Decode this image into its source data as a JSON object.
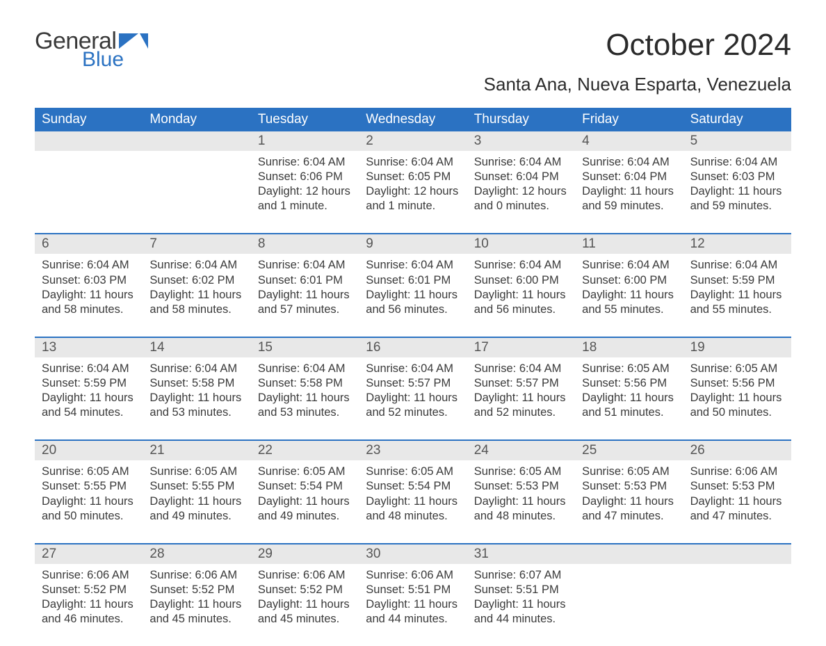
{
  "logo": {
    "general": "General",
    "blue": "Blue"
  },
  "title": "October 2024",
  "location": "Santa Ana, Nueva Esparta, Venezuela",
  "colors": {
    "header_bg": "#2b72c2",
    "header_text": "#ffffff",
    "daynum_bg": "#e8e8e8",
    "week_border": "#2b72c2",
    "body_text": "#3a3a3a",
    "page_bg": "#ffffff",
    "logo_blue": "#2b72c2"
  },
  "typography": {
    "body_fontsize": 16.5,
    "header_fontsize": 19,
    "title_fontsize": 44,
    "location_fontsize": 26
  },
  "day_names": [
    "Sunday",
    "Monday",
    "Tuesday",
    "Wednesday",
    "Thursday",
    "Friday",
    "Saturday"
  ],
  "weeks": [
    [
      {
        "day": "",
        "sunrise": "",
        "sunset": "",
        "daylight1": "",
        "daylight2": ""
      },
      {
        "day": "",
        "sunrise": "",
        "sunset": "",
        "daylight1": "",
        "daylight2": ""
      },
      {
        "day": "1",
        "sunrise": "Sunrise: 6:04 AM",
        "sunset": "Sunset: 6:06 PM",
        "daylight1": "Daylight: 12 hours",
        "daylight2": "and 1 minute."
      },
      {
        "day": "2",
        "sunrise": "Sunrise: 6:04 AM",
        "sunset": "Sunset: 6:05 PM",
        "daylight1": "Daylight: 12 hours",
        "daylight2": "and 1 minute."
      },
      {
        "day": "3",
        "sunrise": "Sunrise: 6:04 AM",
        "sunset": "Sunset: 6:04 PM",
        "daylight1": "Daylight: 12 hours",
        "daylight2": "and 0 minutes."
      },
      {
        "day": "4",
        "sunrise": "Sunrise: 6:04 AM",
        "sunset": "Sunset: 6:04 PM",
        "daylight1": "Daylight: 11 hours",
        "daylight2": "and 59 minutes."
      },
      {
        "day": "5",
        "sunrise": "Sunrise: 6:04 AM",
        "sunset": "Sunset: 6:03 PM",
        "daylight1": "Daylight: 11 hours",
        "daylight2": "and 59 minutes."
      }
    ],
    [
      {
        "day": "6",
        "sunrise": "Sunrise: 6:04 AM",
        "sunset": "Sunset: 6:03 PM",
        "daylight1": "Daylight: 11 hours",
        "daylight2": "and 58 minutes."
      },
      {
        "day": "7",
        "sunrise": "Sunrise: 6:04 AM",
        "sunset": "Sunset: 6:02 PM",
        "daylight1": "Daylight: 11 hours",
        "daylight2": "and 58 minutes."
      },
      {
        "day": "8",
        "sunrise": "Sunrise: 6:04 AM",
        "sunset": "Sunset: 6:01 PM",
        "daylight1": "Daylight: 11 hours",
        "daylight2": "and 57 minutes."
      },
      {
        "day": "9",
        "sunrise": "Sunrise: 6:04 AM",
        "sunset": "Sunset: 6:01 PM",
        "daylight1": "Daylight: 11 hours",
        "daylight2": "and 56 minutes."
      },
      {
        "day": "10",
        "sunrise": "Sunrise: 6:04 AM",
        "sunset": "Sunset: 6:00 PM",
        "daylight1": "Daylight: 11 hours",
        "daylight2": "and 56 minutes."
      },
      {
        "day": "11",
        "sunrise": "Sunrise: 6:04 AM",
        "sunset": "Sunset: 6:00 PM",
        "daylight1": "Daylight: 11 hours",
        "daylight2": "and 55 minutes."
      },
      {
        "day": "12",
        "sunrise": "Sunrise: 6:04 AM",
        "sunset": "Sunset: 5:59 PM",
        "daylight1": "Daylight: 11 hours",
        "daylight2": "and 55 minutes."
      }
    ],
    [
      {
        "day": "13",
        "sunrise": "Sunrise: 6:04 AM",
        "sunset": "Sunset: 5:59 PM",
        "daylight1": "Daylight: 11 hours",
        "daylight2": "and 54 minutes."
      },
      {
        "day": "14",
        "sunrise": "Sunrise: 6:04 AM",
        "sunset": "Sunset: 5:58 PM",
        "daylight1": "Daylight: 11 hours",
        "daylight2": "and 53 minutes."
      },
      {
        "day": "15",
        "sunrise": "Sunrise: 6:04 AM",
        "sunset": "Sunset: 5:58 PM",
        "daylight1": "Daylight: 11 hours",
        "daylight2": "and 53 minutes."
      },
      {
        "day": "16",
        "sunrise": "Sunrise: 6:04 AM",
        "sunset": "Sunset: 5:57 PM",
        "daylight1": "Daylight: 11 hours",
        "daylight2": "and 52 minutes."
      },
      {
        "day": "17",
        "sunrise": "Sunrise: 6:04 AM",
        "sunset": "Sunset: 5:57 PM",
        "daylight1": "Daylight: 11 hours",
        "daylight2": "and 52 minutes."
      },
      {
        "day": "18",
        "sunrise": "Sunrise: 6:05 AM",
        "sunset": "Sunset: 5:56 PM",
        "daylight1": "Daylight: 11 hours",
        "daylight2": "and 51 minutes."
      },
      {
        "day": "19",
        "sunrise": "Sunrise: 6:05 AM",
        "sunset": "Sunset: 5:56 PM",
        "daylight1": "Daylight: 11 hours",
        "daylight2": "and 50 minutes."
      }
    ],
    [
      {
        "day": "20",
        "sunrise": "Sunrise: 6:05 AM",
        "sunset": "Sunset: 5:55 PM",
        "daylight1": "Daylight: 11 hours",
        "daylight2": "and 50 minutes."
      },
      {
        "day": "21",
        "sunrise": "Sunrise: 6:05 AM",
        "sunset": "Sunset: 5:55 PM",
        "daylight1": "Daylight: 11 hours",
        "daylight2": "and 49 minutes."
      },
      {
        "day": "22",
        "sunrise": "Sunrise: 6:05 AM",
        "sunset": "Sunset: 5:54 PM",
        "daylight1": "Daylight: 11 hours",
        "daylight2": "and 49 minutes."
      },
      {
        "day": "23",
        "sunrise": "Sunrise: 6:05 AM",
        "sunset": "Sunset: 5:54 PM",
        "daylight1": "Daylight: 11 hours",
        "daylight2": "and 48 minutes."
      },
      {
        "day": "24",
        "sunrise": "Sunrise: 6:05 AM",
        "sunset": "Sunset: 5:53 PM",
        "daylight1": "Daylight: 11 hours",
        "daylight2": "and 48 minutes."
      },
      {
        "day": "25",
        "sunrise": "Sunrise: 6:05 AM",
        "sunset": "Sunset: 5:53 PM",
        "daylight1": "Daylight: 11 hours",
        "daylight2": "and 47 minutes."
      },
      {
        "day": "26",
        "sunrise": "Sunrise: 6:06 AM",
        "sunset": "Sunset: 5:53 PM",
        "daylight1": "Daylight: 11 hours",
        "daylight2": "and 47 minutes."
      }
    ],
    [
      {
        "day": "27",
        "sunrise": "Sunrise: 6:06 AM",
        "sunset": "Sunset: 5:52 PM",
        "daylight1": "Daylight: 11 hours",
        "daylight2": "and 46 minutes."
      },
      {
        "day": "28",
        "sunrise": "Sunrise: 6:06 AM",
        "sunset": "Sunset: 5:52 PM",
        "daylight1": "Daylight: 11 hours",
        "daylight2": "and 45 minutes."
      },
      {
        "day": "29",
        "sunrise": "Sunrise: 6:06 AM",
        "sunset": "Sunset: 5:52 PM",
        "daylight1": "Daylight: 11 hours",
        "daylight2": "and 45 minutes."
      },
      {
        "day": "30",
        "sunrise": "Sunrise: 6:06 AM",
        "sunset": "Sunset: 5:51 PM",
        "daylight1": "Daylight: 11 hours",
        "daylight2": "and 44 minutes."
      },
      {
        "day": "31",
        "sunrise": "Sunrise: 6:07 AM",
        "sunset": "Sunset: 5:51 PM",
        "daylight1": "Daylight: 11 hours",
        "daylight2": "and 44 minutes."
      },
      {
        "day": "",
        "sunrise": "",
        "sunset": "",
        "daylight1": "",
        "daylight2": ""
      },
      {
        "day": "",
        "sunrise": "",
        "sunset": "",
        "daylight1": "",
        "daylight2": ""
      }
    ]
  ]
}
